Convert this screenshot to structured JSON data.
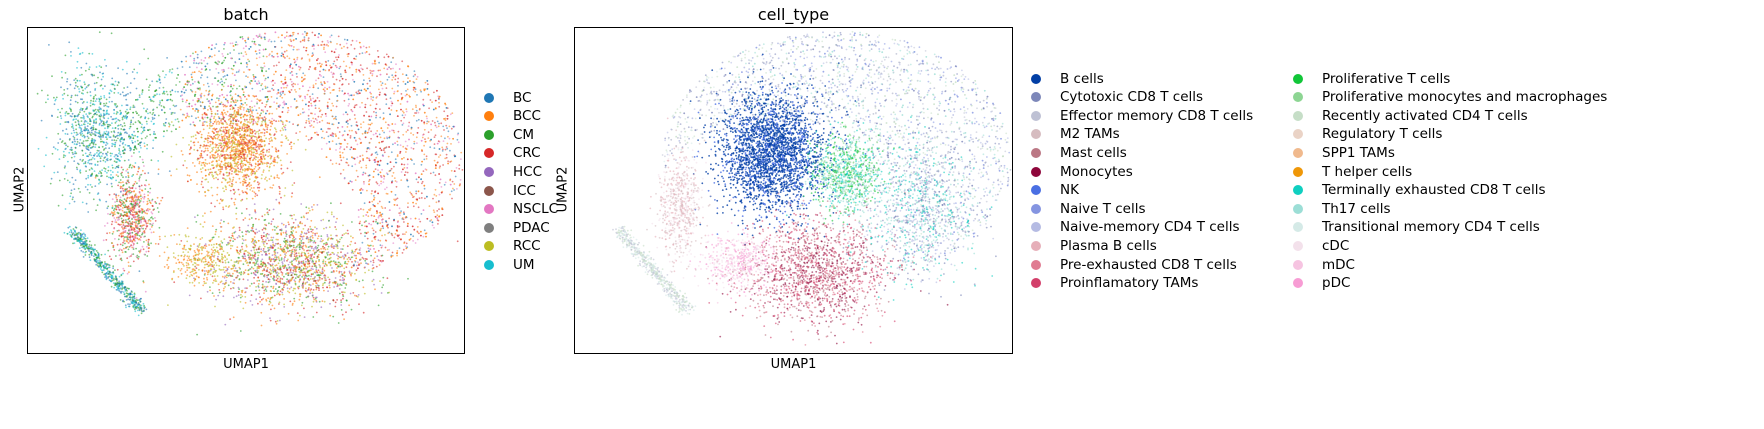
{
  "chart_data": [
    {
      "type": "scatter",
      "title": "batch",
      "xlabel": "UMAP1",
      "ylabel": "UMAP2",
      "grid": false,
      "legend_position": "right",
      "series": [
        {
          "name": "BC",
          "color": "#1f77b4"
        },
        {
          "name": "BCC",
          "color": "#ff7f0e"
        },
        {
          "name": "CM",
          "color": "#2ca02c"
        },
        {
          "name": "CRC",
          "color": "#d62728"
        },
        {
          "name": "HCC",
          "color": "#9467bd"
        },
        {
          "name": "ICC",
          "color": "#8c564b"
        },
        {
          "name": "NSCLC",
          "color": "#e377c2"
        },
        {
          "name": "PDAC",
          "color": "#7f7f7f"
        },
        {
          "name": "RCC",
          "color": "#bcbd22"
        },
        {
          "name": "UM",
          "color": "#17becf"
        }
      ]
    },
    {
      "type": "scatter",
      "title": "cell_type",
      "xlabel": "UMAP1",
      "ylabel": "UMAP2",
      "grid": false,
      "legend_position": "right",
      "series": [
        {
          "name": "B cells",
          "color": "#023fa5"
        },
        {
          "name": "Cytotoxic CD8 T cells",
          "color": "#7d87b9"
        },
        {
          "name": "Effector memory CD8 T cells",
          "color": "#bec1d4"
        },
        {
          "name": "M2 TAMs",
          "color": "#d6bcc0"
        },
        {
          "name": "Mast cells",
          "color": "#bb7784"
        },
        {
          "name": "Monocytes",
          "color": "#8e063b"
        },
        {
          "name": "NK",
          "color": "#4a6fe3"
        },
        {
          "name": "Naive T cells",
          "color": "#8595e1"
        },
        {
          "name": "Naive-memory CD4 T cells",
          "color": "#b5bbe3"
        },
        {
          "name": "Plasma B cells",
          "color": "#e6afb9"
        },
        {
          "name": "Pre-exhausted CD8 T cells",
          "color": "#e07b91"
        },
        {
          "name": "Proinflamatory TAMs",
          "color": "#d33f6a"
        },
        {
          "name": "Proliferative T cells",
          "color": "#11c638"
        },
        {
          "name": "Proliferative monocytes and macrophages",
          "color": "#8dd593"
        },
        {
          "name": "Recently activated CD4 T cells",
          "color": "#c6dec7"
        },
        {
          "name": "Regulatory T cells",
          "color": "#ead3c6"
        },
        {
          "name": "SPP1 TAMs",
          "color": "#f0b98d"
        },
        {
          "name": "T helper cells",
          "color": "#ef9708"
        },
        {
          "name": "Terminally exhausted CD8 T cells",
          "color": "#0fcfc0"
        },
        {
          "name": "Th17 cells",
          "color": "#9cded6"
        },
        {
          "name": "Transitional memory CD4 T cells",
          "color": "#d5eae7"
        },
        {
          "name": "cDC",
          "color": "#f3e1eb"
        },
        {
          "name": "mDC",
          "color": "#f6c4e1"
        },
        {
          "name": "pDC",
          "color": "#f79cd4"
        }
      ]
    }
  ]
}
